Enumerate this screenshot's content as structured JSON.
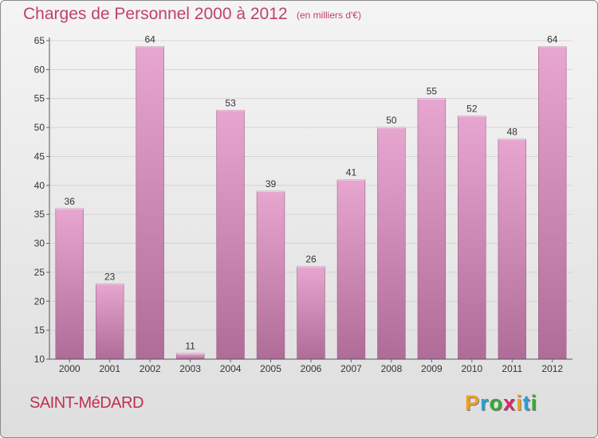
{
  "title": "Charges de Personnel 2000 à 2012",
  "subtitle": "(en milliers d'€)",
  "commune": "SAINT-MéDARD",
  "logo": {
    "letters": [
      "P",
      "r",
      "o",
      "x",
      "i",
      "t",
      "i"
    ],
    "colors": [
      "#f0a020",
      "#2a9fd6",
      "#38a838",
      "#d42a6e",
      "#f0a020",
      "#2a9fd6",
      "#38a838"
    ]
  },
  "colors": {
    "title": "#c04070",
    "bar_light": "#e7a6cf",
    "bar_dark": "#b06c98",
    "grid": "#d4d4d4"
  },
  "chart_data": {
    "type": "bar",
    "categories": [
      "2000",
      "2001",
      "2002",
      "2003",
      "2004",
      "2005",
      "2006",
      "2007",
      "2008",
      "2009",
      "2010",
      "2011",
      "2012"
    ],
    "values": [
      36,
      23,
      64,
      11,
      53,
      39,
      26,
      41,
      50,
      55,
      52,
      48,
      64
    ],
    "data_labels": [
      "36",
      "23",
      "64",
      "11",
      "53",
      "39",
      "26",
      "41",
      "50",
      "55",
      "52",
      "48",
      "64"
    ],
    "ylim": [
      10,
      65
    ],
    "yticks": [
      10,
      15,
      20,
      25,
      30,
      35,
      40,
      45,
      50,
      55,
      60,
      65
    ],
    "xlabel": "",
    "ylabel": "",
    "grid": true
  }
}
